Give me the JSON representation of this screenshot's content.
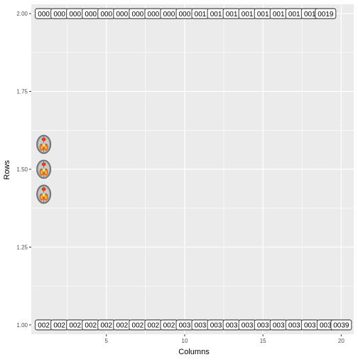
{
  "chart_data": {
    "type": "scatter",
    "title": "",
    "xlabel": "Columns",
    "ylabel": "Rows",
    "xlim": [
      0.2,
      20.8
    ],
    "ylim": [
      0.97,
      2.03
    ],
    "x_ticks": [
      5,
      10,
      15,
      20
    ],
    "y_ticks": [
      1.0,
      1.25,
      1.5,
      1.75,
      2.0
    ],
    "x_tick_labels": [
      "5",
      "10",
      "15",
      "20"
    ],
    "y_tick_labels": [
      "1.00",
      "1.25",
      "1.50",
      "1.75",
      "2.00"
    ],
    "grid": true,
    "panel_background": "#EBEBEB",
    "grid_color": "#FFFFFF",
    "series": [
      {
        "y": 2.0,
        "x": [
          1,
          2,
          3,
          4,
          5,
          6,
          7,
          8,
          9,
          10,
          11,
          12,
          13,
          14,
          15,
          16,
          17,
          18,
          19
        ],
        "labels": [
          "000",
          "000",
          "000",
          "000",
          "000",
          "000",
          "000",
          "000",
          "000",
          "000",
          "001",
          "001",
          "001",
          "001",
          "001",
          "001",
          "001",
          "001",
          "0019"
        ]
      },
      {
        "y": 1.0,
        "x": [
          1,
          2,
          3,
          4,
          5,
          6,
          7,
          8,
          9,
          10,
          11,
          12,
          13,
          14,
          15,
          16,
          17,
          18,
          19,
          20
        ],
        "labels": [
          "002",
          "002",
          "002",
          "002",
          "002",
          "002",
          "002",
          "002",
          "002",
          "003",
          "003",
          "003",
          "003",
          "003",
          "003",
          "003",
          "003",
          "003",
          "003",
          "0039"
        ]
      }
    ],
    "images": [
      {
        "x": 1,
        "y": 1.58,
        "name": "brain-scan-icon"
      },
      {
        "x": 1,
        "y": 1.5,
        "name": "brain-scan-icon"
      },
      {
        "x": 1,
        "y": 1.42,
        "name": "brain-scan-icon"
      }
    ]
  }
}
